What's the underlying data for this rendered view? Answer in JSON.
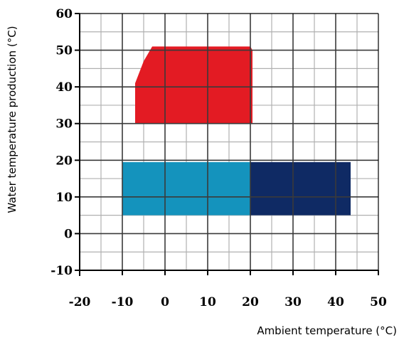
{
  "chart_data": {
    "type": "area",
    "xlabel": "Ambient temperature (°C)",
    "ylabel": "Water temperature production (°C)",
    "xlim": [
      -20,
      50
    ],
    "ylim": [
      -10,
      60
    ],
    "x_ticks": [
      "-20",
      "-10",
      "0",
      "10",
      "20",
      "30",
      "40",
      "50"
    ],
    "y_ticks": [
      "-10",
      "0",
      "10",
      "20",
      "30",
      "40",
      "50",
      "60"
    ],
    "minor_grid_step": 5,
    "grid": true,
    "regions": [
      {
        "color": "#e31b23",
        "points": [
          [
            -7,
            30
          ],
          [
            -7,
            41
          ],
          [
            -5,
            47
          ],
          [
            -3,
            51
          ],
          [
            20,
            51
          ],
          [
            20.5,
            50
          ],
          [
            20.5,
            30
          ]
        ]
      },
      {
        "color": "#1493bd",
        "points": [
          [
            -10,
            5
          ],
          [
            -10,
            19.5
          ],
          [
            20,
            19.5
          ],
          [
            20,
            5
          ]
        ]
      },
      {
        "color": "#0f2a64",
        "points": [
          [
            20,
            5
          ],
          [
            20,
            19.5
          ],
          [
            43.5,
            19.5
          ],
          [
            43.5,
            5
          ]
        ]
      }
    ]
  }
}
